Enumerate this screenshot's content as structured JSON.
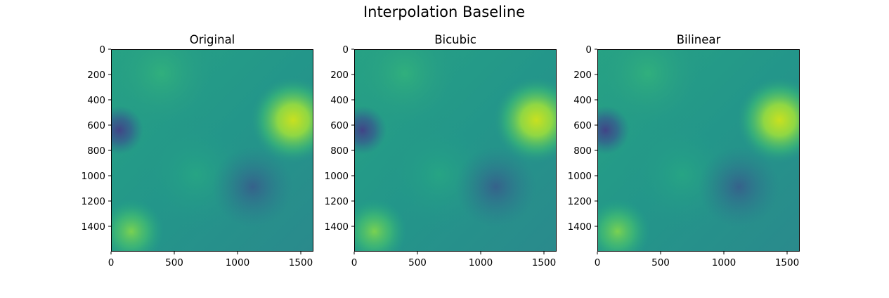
{
  "chart_data": {
    "type": "heatmap",
    "title": "Interpolation Baseline",
    "colormap": "viridis",
    "panels": [
      {
        "title": "Original",
        "xlim": [
          0,
          1600
        ],
        "ylim": [
          1600,
          0
        ],
        "xticks": [
          0,
          500,
          1000,
          1500
        ],
        "yticks": [
          0,
          200,
          400,
          600,
          800,
          1000,
          1200,
          1400
        ]
      },
      {
        "title": "Bicubic",
        "xlim": [
          0,
          1600
        ],
        "ylim": [
          1600,
          0
        ],
        "xticks": [
          0,
          500,
          1000,
          1500
        ],
        "yticks": [
          0,
          200,
          400,
          600,
          800,
          1000,
          1200,
          1400
        ]
      },
      {
        "title": "Bilinear",
        "xlim": [
          0,
          1600
        ],
        "ylim": [
          1600,
          0
        ],
        "xticks": [
          0,
          500,
          1000,
          1500
        ],
        "yticks": [
          0,
          200,
          400,
          600,
          800,
          1000,
          1200,
          1400
        ]
      }
    ]
  }
}
